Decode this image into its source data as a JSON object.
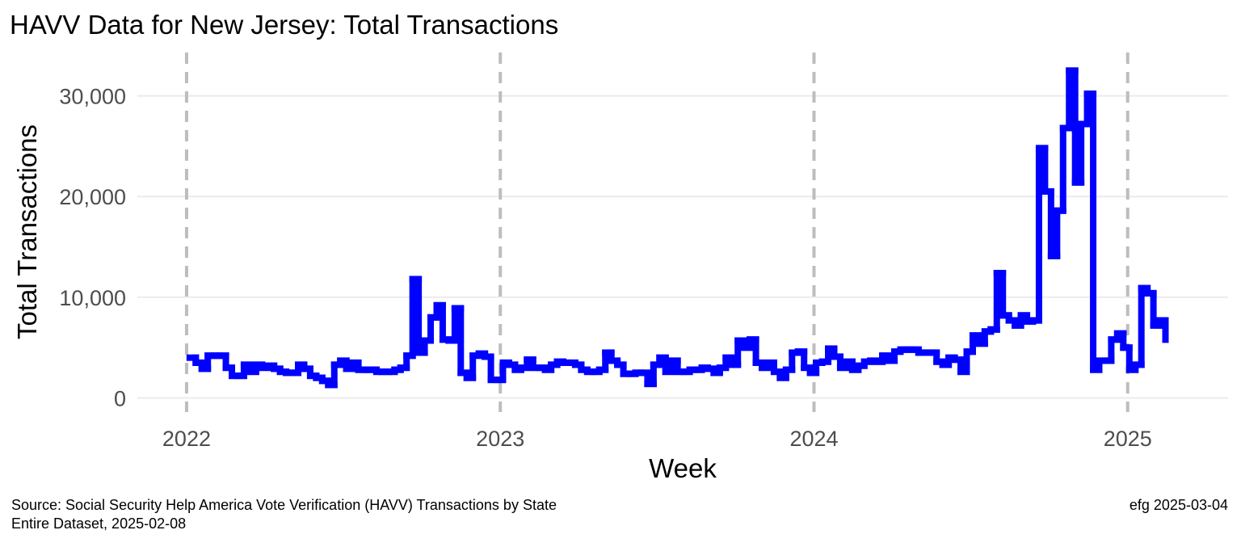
{
  "chart_data": {
    "type": "step",
    "title": "HAVV Data for New Jersey:  Total Transactions",
    "xlabel": "Week",
    "ylabel": "Total Transactions",
    "caption_left": [
      "Source:  Social Security Help America Vote Verification (HAVV) Transactions by State",
      "Entire Dataset, 2025-02-08"
    ],
    "caption_right": "efg 2025-03-04",
    "xlim": [
      2021.843,
      2025.32
    ],
    "ylim": [
      -1400,
      34300
    ],
    "xticks": [
      2022,
      2023,
      2024,
      2025
    ],
    "yticks": [
      0,
      {
        "value": 10000,
        "label": "10,000"
      },
      {
        "value": 20000,
        "label": "20,000"
      },
      {
        "value": 30000,
        "label": "30,000"
      }
    ],
    "grid": true,
    "x_grid_color": "#bdbdbd",
    "y_grid_color": "#ebebeb",
    "x": [
      2022.01,
      2022.0292,
      2022.0484,
      2022.0676,
      2022.0868,
      2022.106,
      2022.1252,
      2022.1444,
      2022.1636,
      2022.1828,
      2022.202,
      2022.2212,
      2022.2404,
      2022.2596,
      2022.2788,
      2022.298,
      2022.3172,
      2022.3364,
      2022.3556,
      2022.3748,
      2022.394,
      2022.4132,
      2022.4324,
      2022.4516,
      2022.4708,
      2022.49,
      2022.5092,
      2022.5284,
      2022.5476,
      2022.5668,
      2022.586,
      2022.6052,
      2022.6244,
      2022.6436,
      2022.6628,
      2022.682,
      2022.7012,
      2022.7204,
      2022.7396,
      2022.7588,
      2022.778,
      2022.7972,
      2022.8164,
      2022.8356,
      2022.8548,
      2022.874,
      2022.8932,
      2022.9124,
      2022.9316,
      2022.9508,
      2022.97,
      2022.9892,
      2023.0084,
      2023.0276,
      2023.0468,
      2023.066,
      2023.0852,
      2023.1044,
      2023.1236,
      2023.1428,
      2023.162,
      2023.1812,
      2023.2004,
      2023.2196,
      2023.2388,
      2023.258,
      2023.2772,
      2023.2964,
      2023.3156,
      2023.3348,
      2023.354,
      2023.3732,
      2023.3924,
      2023.4116,
      2023.4308,
      2023.45,
      2023.4692,
      2023.4884,
      2023.5076,
      2023.5268,
      2023.546,
      2023.5652,
      2023.5844,
      2023.6036,
      2023.6228,
      2023.642,
      2023.6612,
      2023.6804,
      2023.6996,
      2023.7188,
      2023.738,
      2023.7572,
      2023.7764,
      2023.7956,
      2023.8148,
      2023.834,
      2023.8532,
      2023.8724,
      2023.8916,
      2023.9108,
      2023.93,
      2023.9492,
      2023.9684,
      2023.9876,
      2024.0068,
      2024.026,
      2024.0452,
      2024.0644,
      2024.0836,
      2024.1028,
      2024.122,
      2024.1412,
      2024.1604,
      2024.1796,
      2024.1988,
      2024.218,
      2024.2372,
      2024.2564,
      2024.2756,
      2024.2948,
      2024.314,
      2024.3332,
      2024.3524,
      2024.3716,
      2024.3908,
      2024.41,
      2024.4292,
      2024.4484,
      2024.4676,
      2024.4868,
      2024.506,
      2024.5252,
      2024.5444,
      2024.5636,
      2024.5828,
      2024.602,
      2024.6212,
      2024.6404,
      2024.6596,
      2024.6788,
      2024.698,
      2024.7172,
      2024.7364,
      2024.7556,
      2024.7748,
      2024.794,
      2024.8132,
      2024.8324,
      2024.8516,
      2024.8708,
      2024.89,
      2024.9092,
      2024.9284,
      2024.9476,
      2024.9668,
      2024.986,
      2025.0052,
      2025.0244,
      2025.0436,
      2025.0628,
      2025.082,
      2025.1012,
      2025.1204
    ],
    "series": [
      {
        "name": "Total Transactions",
        "color": "#0000ff",
        "values": [
          4000,
          3500,
          2900,
          4200,
          4200,
          4200,
          3000,
          2200,
          2200,
          3300,
          2600,
          3300,
          3000,
          3200,
          2900,
          2600,
          2500,
          2500,
          3300,
          2900,
          2200,
          2000,
          1700,
          1300,
          3300,
          3700,
          2900,
          3500,
          2800,
          2800,
          2800,
          2600,
          2600,
          2600,
          2800,
          3000,
          4200,
          11800,
          4500,
          5700,
          8000,
          9200,
          5800,
          5700,
          8900,
          2500,
          2000,
          4200,
          4400,
          4100,
          1800,
          1800,
          3500,
          3300,
          2800,
          3000,
          3800,
          3000,
          3000,
          2800,
          3300,
          3600,
          3500,
          3500,
          3300,
          2800,
          2600,
          2600,
          2800,
          4500,
          3700,
          3300,
          2400,
          2400,
          2500,
          2500,
          1400,
          3300,
          4000,
          2600,
          3700,
          2600,
          2600,
          2800,
          2800,
          3000,
          2900,
          2500,
          3000,
          4000,
          3300,
          5700,
          5000,
          5800,
          3500,
          3000,
          3500,
          2600,
          2000,
          2800,
          4500,
          4600,
          3000,
          2500,
          3500,
          3600,
          4900,
          4100,
          3000,
          3600,
          2800,
          3200,
          3600,
          3700,
          3600,
          4200,
          3700,
          4600,
          4800,
          4800,
          4800,
          4500,
          4500,
          4500,
          3600,
          3300,
          4000,
          3800,
          2600,
          4600,
          6200,
          5400,
          6600,
          6800,
          12400,
          8200,
          7700,
          7200,
          8200,
          7600,
          7700,
          24800,
          20500,
          14100,
          18600,
          26800,
          32500,
          21400,
          27200,
          30200,
          2800,
          3700,
          3700,
          5800,
          6400,
          5000,
          2800,
          3300,
          10900,
          10400,
          7200,
          7700,
          5800
        ]
      }
    ]
  }
}
